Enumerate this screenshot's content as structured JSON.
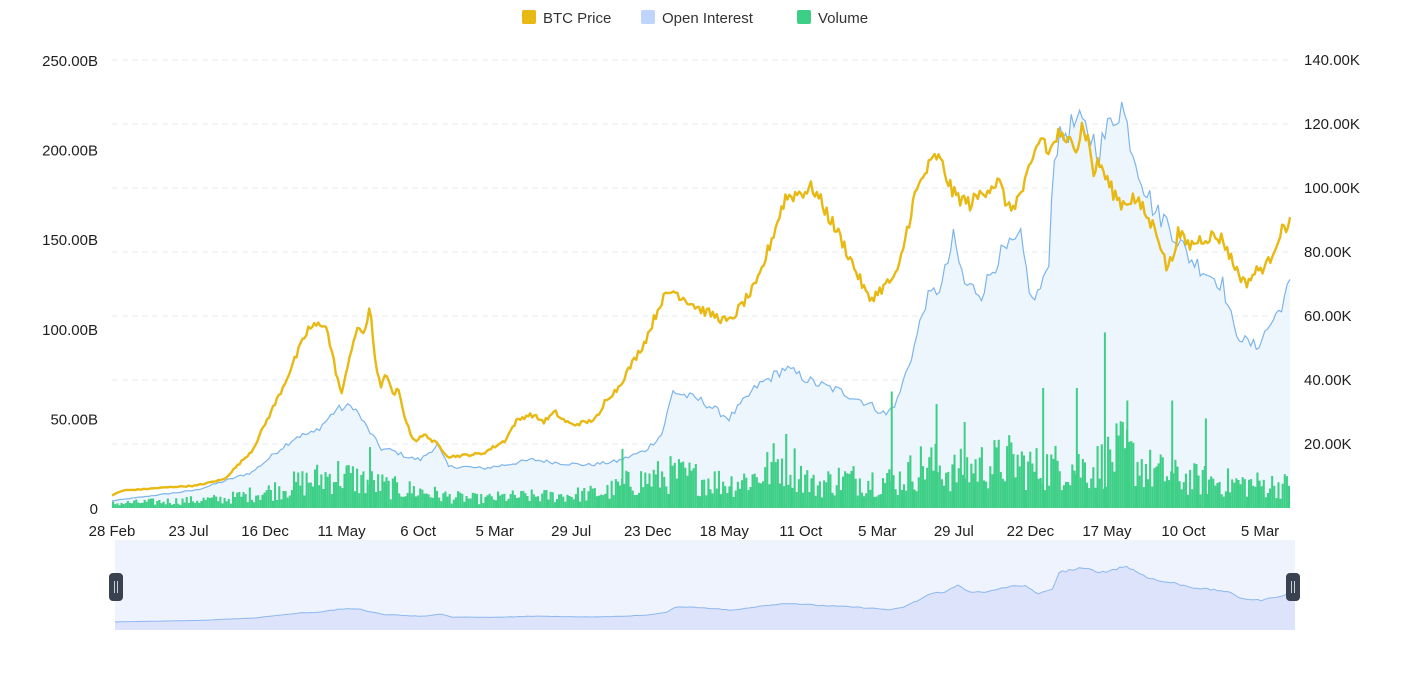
{
  "chart_data": {
    "type": "line",
    "legend": {
      "placement": "top-center",
      "items": [
        {
          "label": "BTC Price",
          "color": "#E8B913"
        },
        {
          "label": "Open Interest",
          "color": "#BFD4FB"
        },
        {
          "label": "Volume",
          "color": "#3ECF86"
        }
      ]
    },
    "left_axis": {
      "ticks": [
        "0",
        "50.00B",
        "100.00B",
        "150.00B",
        "200.00B",
        "250.00B"
      ],
      "range": [
        0,
        250
      ]
    },
    "right_axis": {
      "ticks": [
        "20.00K",
        "40.00K",
        "60.00K",
        "80.00K",
        "100.00K",
        "120.00K",
        "140.00K"
      ],
      "range": [
        0,
        140
      ]
    },
    "x_axis": {
      "ticks": [
        "28 Feb",
        "23 Jul",
        "16 Dec",
        "11 May",
        "6 Oct",
        "5 Mar",
        "29 Jul",
        "23 Dec",
        "18 May",
        "11 Oct",
        "5 Mar",
        "29 Jul",
        "22 Dec",
        "17 May",
        "10 Oct",
        "5 Mar"
      ]
    },
    "grid": true,
    "colors": {
      "price": "#E8B913",
      "oi_line": "#7CB5EC",
      "oi_fill": "#EEF6FD",
      "volume": "#3ECF86",
      "navigator_fill": "#DDE3FB",
      "navigator_bg": "#EEF3FE"
    },
    "series": [
      {
        "name": "BTC Price",
        "axis": "right",
        "unit": "K USD",
        "x": [
          0,
          2,
          5,
          10,
          15,
          20,
          25,
          30,
          35,
          38,
          40,
          41,
          42,
          43,
          44,
          45,
          46,
          47,
          48,
          49,
          50,
          51,
          52,
          53,
          54,
          55,
          56,
          57,
          58,
          60,
          63,
          66,
          68,
          70,
          72,
          74,
          75,
          76,
          77,
          78,
          79,
          80,
          82,
          85,
          87,
          88,
          90,
          92,
          95,
          98,
          100,
          105,
          110,
          115,
          120,
          125,
          130,
          135,
          140,
          143,
          145,
          147,
          148,
          150,
          153,
          156,
          158,
          160,
          162,
          164,
          165,
          166,
          167,
          168,
          169,
          170,
          171,
          172,
          173,
          174,
          175,
          176,
          178,
          180,
          182,
          184,
          185,
          186,
          187,
          188,
          189,
          190,
          192,
          194,
          196,
          198,
          200,
          202,
          204,
          206,
          208,
          210
        ],
        "values": [
          4.0,
          5.5,
          5.8,
          6.5,
          7.0,
          9.0,
          18.0,
          36.0,
          56.0,
          58.0,
          42.0,
          35.0,
          45.0,
          52.0,
          56.0,
          55.0,
          62.0,
          45.0,
          38.0,
          42.0,
          35.0,
          37.0,
          30.0,
          24.0,
          21.0,
          22.0,
          23.0,
          21.0,
          20.0,
          16.0,
          16.5,
          17.0,
          19.0,
          21.0,
          27.0,
          29.0,
          29.0,
          28.0,
          27.0,
          28.5,
          30.0,
          28.0,
          26.0,
          27.0,
          29.0,
          34.0,
          37.0,
          43.0,
          52.0,
          65.0,
          68.0,
          62.0,
          58.0,
          70.0,
          97.0,
          100.0,
          84.0,
          65.0,
          73.0,
          97.0,
          105.0,
          110.0,
          107.0,
          98.0,
          95.0,
          100.0,
          102.0,
          93.0,
          98.0,
          107.0,
          114.0,
          116.0,
          110.0,
          115.0,
          117.0,
          112.0,
          118.0,
          112.0,
          120.0,
          115.0,
          105.0,
          108.0,
          100.0,
          95.0,
          97.0,
          93.0,
          89.0,
          88.0,
          82.0,
          75.0,
          78.0,
          86.0,
          82.0,
          84.0,
          85.0,
          84.0,
          76.0,
          70.0,
          74.0,
          76.0,
          85.0,
          90.0
        ]
      },
      {
        "name": "Open Interest",
        "axis": "left",
        "unit": "B USD",
        "x": [
          0,
          5,
          10,
          15,
          20,
          25,
          30,
          33,
          36,
          38,
          40,
          43,
          45,
          48,
          50,
          53,
          55,
          58,
          60,
          63,
          66,
          70,
          75,
          80,
          85,
          90,
          95,
          98,
          100,
          105,
          110,
          115,
          120,
          125,
          130,
          135,
          138,
          140,
          143,
          145,
          148,
          150,
          152,
          155,
          158,
          160,
          162,
          164,
          166,
          167,
          168,
          170,
          172,
          174,
          176,
          178,
          180,
          182,
          184,
          186,
          188,
          190,
          192,
          195,
          198,
          200,
          202,
          204,
          206,
          208,
          210
        ],
        "values": [
          4,
          6,
          8,
          10,
          15,
          20,
          33,
          40,
          42,
          48,
          55,
          57,
          47,
          33,
          32,
          28,
          27,
          35,
          23,
          23,
          22,
          24,
          27,
          25,
          24,
          26,
          32,
          41,
          65,
          60,
          50,
          68,
          78,
          70,
          65,
          58,
          52,
          60,
          90,
          115,
          125,
          150,
          125,
          120,
          140,
          145,
          150,
          115,
          125,
          140,
          200,
          210,
          215,
          210,
          200,
          215,
          225,
          200,
          180,
          165,
          160,
          150,
          140,
          132,
          125,
          100,
          93,
          90,
          100,
          110,
          125
        ]
      },
      {
        "name": "Volume",
        "axis": "left",
        "unit": "B USD",
        "envelope_x": [
          0,
          20,
          28,
          35,
          40,
          50,
          55,
          60,
          66,
          70,
          80,
          88,
          92,
          100,
          110,
          115,
          120,
          125,
          130,
          140,
          145,
          150,
          155,
          160,
          165,
          170,
          175,
          180,
          185,
          190,
          200,
          210
        ],
        "envelope_values": [
          4,
          8,
          15,
          24,
          30,
          18,
          15,
          10,
          8,
          10,
          11,
          14,
          22,
          30,
          22,
          28,
          45,
          20,
          26,
          24,
          40,
          32,
          38,
          42,
          35,
          38,
          36,
          50,
          34,
          27,
          22,
          20
        ],
        "spikes": [
          {
            "x": 46,
            "value": 34
          },
          {
            "x": 91,
            "value": 33
          },
          {
            "x": 139,
            "value": 65
          },
          {
            "x": 147,
            "value": 58
          },
          {
            "x": 152,
            "value": 48
          },
          {
            "x": 166,
            "value": 67
          },
          {
            "x": 172,
            "value": 67
          },
          {
            "x": 177,
            "value": 98
          },
          {
            "x": 181,
            "value": 60
          },
          {
            "x": 189,
            "value": 60
          },
          {
            "x": 195,
            "value": 50
          }
        ]
      }
    ]
  }
}
